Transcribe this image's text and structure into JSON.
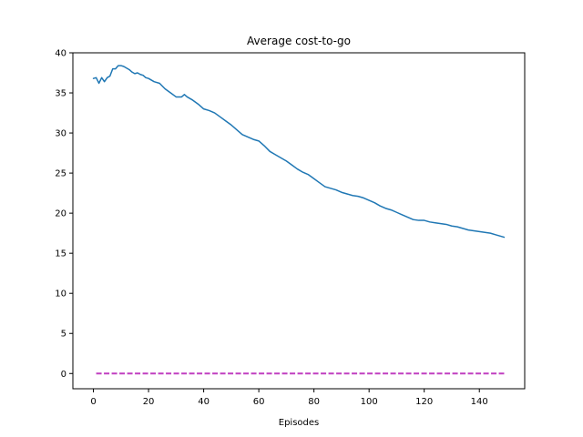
{
  "chart_data": {
    "type": "line",
    "title": "Average cost-to-go",
    "xlabel": "Episodes",
    "ylabel": "",
    "xlim": [
      -7.45,
      156.45
    ],
    "ylim": [
      -1.9,
      40.0
    ],
    "xticks": [
      0,
      20,
      40,
      60,
      80,
      100,
      120,
      140
    ],
    "yticks": [
      0,
      5,
      10,
      15,
      20,
      25,
      30,
      35,
      40
    ],
    "grid": false,
    "series": [
      {
        "color": "#1f77b4",
        "style": "solid",
        "x": [
          0,
          1,
          2,
          3,
          4,
          5,
          6,
          7,
          8,
          9,
          10,
          11,
          12,
          13,
          14,
          15,
          16,
          17,
          18,
          19,
          20,
          22,
          24,
          26,
          28,
          30,
          32,
          33,
          34,
          36,
          38,
          40,
          42,
          44,
          46,
          48,
          50,
          52,
          54,
          56,
          58,
          60,
          62,
          64,
          66,
          68,
          70,
          72,
          74,
          76,
          78,
          80,
          82,
          84,
          86,
          88,
          90,
          92,
          94,
          96,
          98,
          100,
          102,
          104,
          106,
          108,
          110,
          112,
          114,
          116,
          118,
          120,
          122,
          124,
          126,
          128,
          130,
          132,
          134,
          136,
          138,
          140,
          142,
          144,
          146,
          148,
          149
        ],
        "y": [
          36.8,
          36.9,
          36.2,
          36.9,
          36.4,
          36.9,
          37.1,
          38.0,
          38.0,
          38.4,
          38.4,
          38.3,
          38.1,
          37.9,
          37.6,
          37.4,
          37.5,
          37.3,
          37.2,
          36.9,
          36.8,
          36.4,
          36.2,
          35.5,
          35.0,
          34.5,
          34.5,
          34.8,
          34.5,
          34.1,
          33.6,
          33.0,
          32.8,
          32.5,
          32.0,
          31.5,
          31.0,
          30.4,
          29.8,
          29.5,
          29.2,
          29.0,
          28.4,
          27.7,
          27.3,
          26.9,
          26.5,
          26.0,
          25.5,
          25.1,
          24.8,
          24.3,
          23.8,
          23.3,
          23.1,
          22.9,
          22.6,
          22.4,
          22.2,
          22.1,
          21.9,
          21.6,
          21.3,
          20.9,
          20.6,
          20.4,
          20.1,
          19.8,
          19.5,
          19.2,
          19.1,
          19.1,
          18.9,
          18.8,
          18.7,
          18.6,
          18.4,
          18.3,
          18.1,
          17.9,
          17.8,
          17.7,
          17.6,
          17.5,
          17.3,
          17.1,
          17.0
        ]
      },
      {
        "color": "#c03fc0",
        "style": "dashed",
        "x": [
          1,
          149
        ],
        "y": [
          0,
          0
        ]
      }
    ]
  }
}
